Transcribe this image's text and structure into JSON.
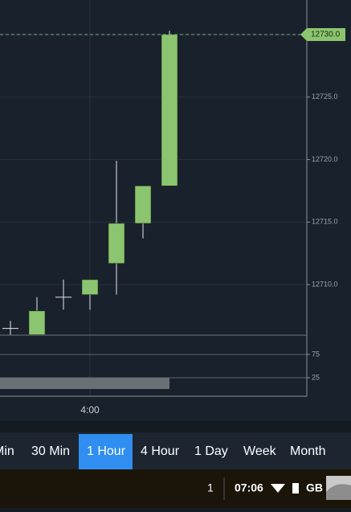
{
  "chart_data": [
    {
      "type": "candlestick",
      "categories": [
        null,
        null,
        null,
        "4:00",
        null,
        null,
        null
      ],
      "open": [
        12706.5,
        12706.0,
        12709.0,
        12709.2,
        12711.7,
        12714.9,
        12717.9
      ],
      "high": [
        12707.1,
        12709.0,
        12710.4,
        12710.4,
        12719.9,
        12717.9,
        12730.3
      ],
      "low": [
        12706.0,
        12706.0,
        12708.0,
        12708.0,
        12709.2,
        12713.7,
        12717.9
      ],
      "close": [
        12706.5,
        12707.9,
        12709.0,
        12710.4,
        12714.9,
        12717.9,
        12730.0
      ],
      "color": "#8cc56f",
      "ylim": [
        12705.96,
        12732.76
      ],
      "yticks": [
        {
          "value": 12710,
          "label": "12710.0"
        },
        {
          "value": 12715,
          "label": "12715.0"
        },
        {
          "value": 12720,
          "label": "12720.0"
        },
        {
          "value": 12725,
          "label": "12725.0"
        },
        {
          "value": 12730,
          "label": "12730.0"
        }
      ],
      "last_price": 12730,
      "last_price_label": "12730.0",
      "grid": true
    },
    {
      "type": "indicator",
      "ylim": [
        -14.7,
        116.4
      ],
      "yticks": [
        25,
        75
      ],
      "grid": true
    }
  ],
  "timeframes": {
    "tabs": [
      "Min",
      "30 Min",
      "1 Hour",
      "4 Hour",
      "1 Day",
      "Week",
      "Month"
    ],
    "selected": 2
  },
  "status_bar": {
    "count": "1",
    "time": "07:06",
    "storage": "GB"
  }
}
